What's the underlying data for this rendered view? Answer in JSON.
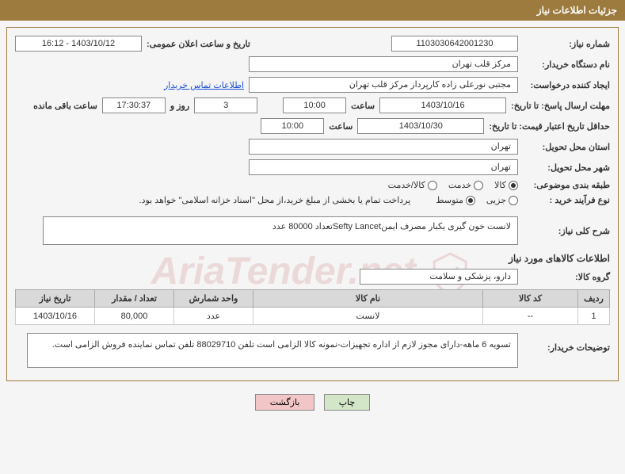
{
  "header": {
    "title": "جزئیات اطلاعات نیاز"
  },
  "fields": {
    "need_number_label": "شماره نیاز:",
    "need_number": "1103030642001230",
    "announce_label": "تاریخ و ساعت اعلان عمومی:",
    "announce_value": "1403/10/12 - 16:12",
    "buyer_org_label": "نام دستگاه خریدار:",
    "buyer_org": "مرکز قلب تهران",
    "requester_label": "ایجاد کننده درخواست:",
    "requester": "مجتبی نورعلی زاده کارپرداز مرکز قلب تهران",
    "contact_link": "اطلاعات تماس خریدار",
    "response_deadline_label": "مهلت ارسال پاسخ: تا تاریخ:",
    "response_date": "1403/10/16",
    "time_label": "ساعت",
    "response_time": "10:00",
    "days_remaining": "3",
    "days_and_label": "روز و",
    "countdown": "17:30:37",
    "remaining_label": "ساعت باقی مانده",
    "validity_label": "حداقل تاریخ اعتبار قیمت: تا تاریخ:",
    "validity_date": "1403/10/30",
    "validity_time": "10:00",
    "province_label": "استان محل تحویل:",
    "province": "تهران",
    "city_label": "شهر محل تحویل:",
    "city": "تهران",
    "category_label": "طبقه بندی موضوعی:",
    "process_label": "نوع فرآیند خرید :",
    "payment_note": "پرداخت تمام یا بخشی از مبلغ خرید،از محل \"اسناد خزانه اسلامی\" خواهد بود."
  },
  "radios": {
    "category": [
      {
        "label": "کالا",
        "checked": true
      },
      {
        "label": "خدمت",
        "checked": false
      },
      {
        "label": "کالا/خدمت",
        "checked": false
      }
    ],
    "process": [
      {
        "label": "جزیی",
        "checked": false
      },
      {
        "label": "متوسط",
        "checked": true
      }
    ]
  },
  "description": {
    "title": "شرح کلی نیاز:",
    "text": "لانست خون گیری یکبار مصرف ایمنSefty Lancetتعداد 80000 عدد"
  },
  "items_section": {
    "title": "اطلاعات کالاهای مورد نیاز",
    "group_label": "گروه کالا:",
    "group_value": "دارو، پزشکی و سلامت"
  },
  "table": {
    "columns": [
      "ردیف",
      "کد کالا",
      "نام کالا",
      "واحد شمارش",
      "تعداد / مقدار",
      "تاریخ نیاز"
    ],
    "rows": [
      [
        "1",
        "--",
        "لانست",
        "عدد",
        "80,000",
        "1403/10/16"
      ]
    ],
    "col_widths": [
      "40px",
      "120px",
      "auto",
      "100px",
      "100px",
      "100px"
    ]
  },
  "buyer_note": {
    "label": "توضیحات خریدار:",
    "text": "تسویه 6 ماهه-دارای مجوز لازم از اداره تجهیزات-نمونه کالا الزامی است تلفن 88029710 تلفن تماس نماینده فروش الزامی است."
  },
  "buttons": {
    "print": "چاپ",
    "back": "بازگشت"
  },
  "watermark": "AriaTender.net",
  "colors": {
    "header_bg": "#9d7b3e",
    "border": "#9d7b3e",
    "th_bg": "#d9d9d9",
    "btn_print": "#d4e6c8",
    "btn_back": "#f2c6c6"
  }
}
